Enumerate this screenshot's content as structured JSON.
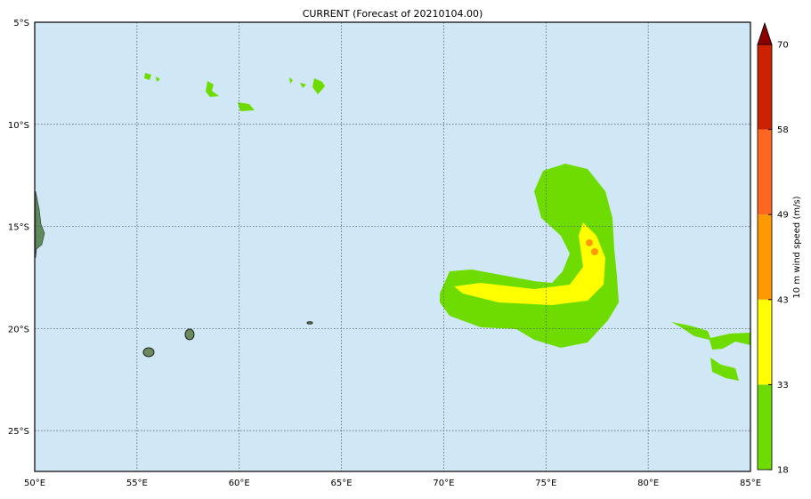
{
  "title": "CURRENT (Forecast of 20210104.00)",
  "map": {
    "lon_range": [
      50,
      85
    ],
    "lat_range": [
      -5,
      -27
    ],
    "lon_ticks": [
      {
        "value": 50,
        "label": "50°E"
      },
      {
        "value": 55,
        "label": "55°E"
      },
      {
        "value": 60,
        "label": "60°E"
      },
      {
        "value": 65,
        "label": "65°E"
      },
      {
        "value": 70,
        "label": "70°E"
      },
      {
        "value": 75,
        "label": "75°E"
      },
      {
        "value": 80,
        "label": "80°E"
      },
      {
        "value": 85,
        "label": "85°E"
      }
    ],
    "lat_ticks": [
      {
        "value": -5,
        "label": "5°S"
      },
      {
        "value": -10,
        "label": "10°S"
      },
      {
        "value": -15,
        "label": "15°S"
      },
      {
        "value": -20,
        "label": "20°S"
      },
      {
        "value": -25,
        "label": "25°S"
      }
    ]
  },
  "colorbar": {
    "label": "10 m wind speed (m/s)",
    "levels": [
      18,
      33,
      43,
      49,
      58,
      70
    ],
    "colors": [
      "#6edc00",
      "#ffff00",
      "#ff9900",
      "#ff6622",
      "#cc2200"
    ],
    "extend_color": "#8b0000"
  }
}
